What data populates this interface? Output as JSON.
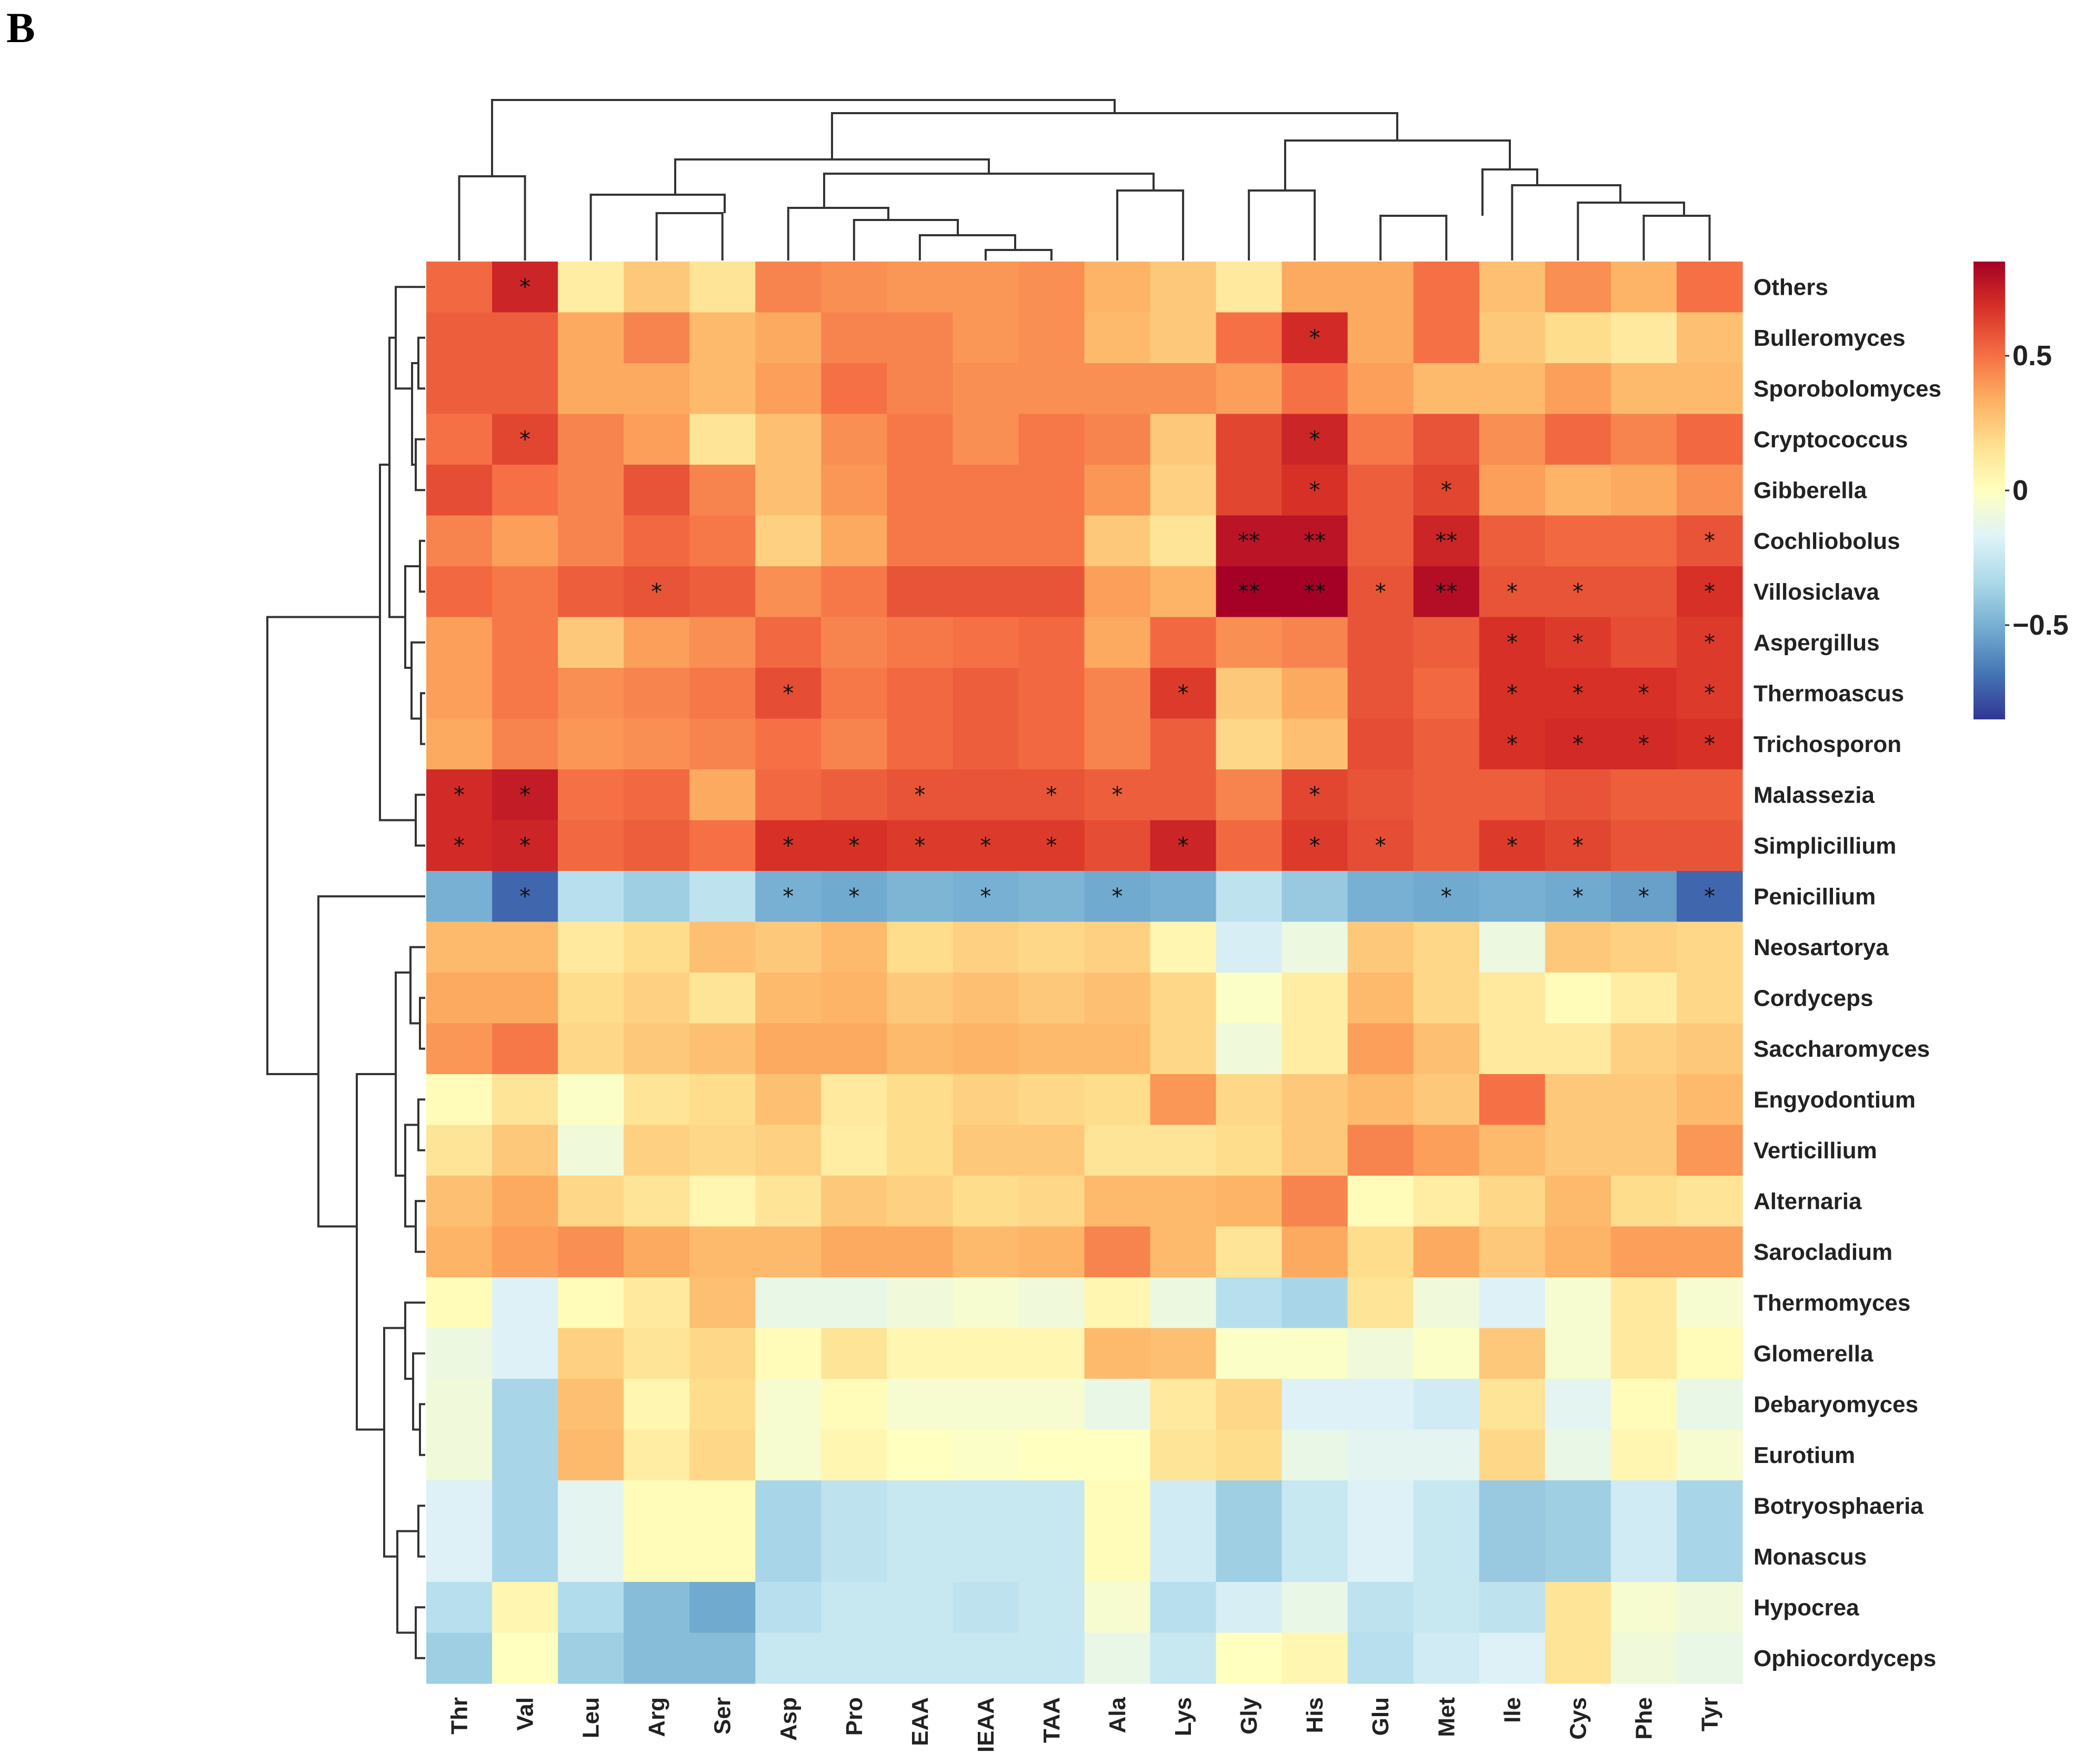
{
  "panel_label": "B",
  "chart_data": {
    "type": "heatmap",
    "title": "",
    "columns": [
      "Thr",
      "Val",
      "Leu",
      "Arg",
      "Ser",
      "Asp",
      "Pro",
      "EAA",
      "IEAA",
      "TAA",
      "Ala",
      "Lys",
      "Gly",
      "His",
      "Glu",
      "Met",
      "Ile",
      "Cys",
      "Phe",
      "Tyr"
    ],
    "rows": [
      "Others",
      "Bulleromyces",
      "Sporobolomyces",
      "Cryptococcus",
      "Gibberella",
      "Cochliobolus",
      "Villosiclava",
      "Aspergillus",
      "Thermoascus",
      "Trichosporon",
      "Malassezia",
      "Simplicillium",
      "Penicillium",
      "Neosartorya",
      "Cordyceps",
      "Saccharomyces",
      "Engyodontium",
      "Verticillium",
      "Alternaria",
      "Sarocladium",
      "Thermomyces",
      "Glomerella",
      "Debaryomyces",
      "Eurotium",
      "Botryosphaeria",
      "Monascus",
      "Hypocrea",
      "Ophiocordyceps"
    ],
    "values": [
      [
        0.52,
        0.72,
        0.1,
        0.25,
        0.15,
        0.45,
        0.42,
        0.4,
        0.4,
        0.42,
        0.32,
        0.25,
        0.12,
        0.35,
        0.35,
        0.5,
        0.28,
        0.42,
        0.32,
        0.5
      ],
      [
        0.55,
        0.55,
        0.35,
        0.45,
        0.3,
        0.35,
        0.45,
        0.45,
        0.4,
        0.42,
        0.3,
        0.25,
        0.5,
        0.7,
        0.35,
        0.5,
        0.25,
        0.18,
        0.12,
        0.28
      ],
      [
        0.55,
        0.55,
        0.35,
        0.35,
        0.3,
        0.38,
        0.5,
        0.45,
        0.42,
        0.42,
        0.42,
        0.42,
        0.38,
        0.5,
        0.38,
        0.3,
        0.3,
        0.38,
        0.3,
        0.3
      ],
      [
        0.5,
        0.62,
        0.45,
        0.38,
        0.15,
        0.28,
        0.42,
        0.48,
        0.42,
        0.48,
        0.45,
        0.25,
        0.62,
        0.72,
        0.48,
        0.58,
        0.42,
        0.52,
        0.45,
        0.52
      ],
      [
        0.6,
        0.5,
        0.45,
        0.58,
        0.45,
        0.28,
        0.4,
        0.48,
        0.48,
        0.48,
        0.4,
        0.22,
        0.62,
        0.68,
        0.55,
        0.62,
        0.38,
        0.32,
        0.35,
        0.42
      ],
      [
        0.45,
        0.38,
        0.45,
        0.52,
        0.48,
        0.22,
        0.35,
        0.48,
        0.48,
        0.48,
        0.25,
        0.15,
        0.78,
        0.78,
        0.55,
        0.72,
        0.55,
        0.52,
        0.52,
        0.58
      ],
      [
        0.52,
        0.48,
        0.55,
        0.58,
        0.55,
        0.42,
        0.48,
        0.58,
        0.58,
        0.58,
        0.38,
        0.32,
        0.86,
        0.9,
        0.58,
        0.8,
        0.58,
        0.58,
        0.58,
        0.68
      ],
      [
        0.38,
        0.48,
        0.25,
        0.38,
        0.42,
        0.52,
        0.45,
        0.48,
        0.5,
        0.52,
        0.35,
        0.52,
        0.42,
        0.45,
        0.58,
        0.55,
        0.68,
        0.65,
        0.6,
        0.65
      ],
      [
        0.38,
        0.48,
        0.42,
        0.45,
        0.48,
        0.6,
        0.48,
        0.52,
        0.55,
        0.52,
        0.45,
        0.65,
        0.25,
        0.35,
        0.58,
        0.52,
        0.68,
        0.68,
        0.68,
        0.65
      ],
      [
        0.35,
        0.45,
        0.4,
        0.42,
        0.45,
        0.5,
        0.45,
        0.52,
        0.55,
        0.52,
        0.45,
        0.55,
        0.2,
        0.28,
        0.6,
        0.55,
        0.68,
        0.7,
        0.7,
        0.68
      ],
      [
        0.7,
        0.75,
        0.5,
        0.52,
        0.35,
        0.52,
        0.55,
        0.58,
        0.58,
        0.58,
        0.55,
        0.55,
        0.45,
        0.62,
        0.58,
        0.55,
        0.55,
        0.58,
        0.55,
        0.55
      ],
      [
        0.7,
        0.72,
        0.52,
        0.55,
        0.5,
        0.68,
        0.68,
        0.65,
        0.65,
        0.65,
        0.6,
        0.72,
        0.52,
        0.65,
        0.6,
        0.55,
        0.65,
        0.62,
        0.58,
        0.58
      ],
      [
        -0.5,
        -0.72,
        -0.3,
        -0.38,
        -0.28,
        -0.5,
        -0.52,
        -0.48,
        -0.5,
        -0.48,
        -0.52,
        -0.5,
        -0.28,
        -0.4,
        -0.5,
        -0.52,
        -0.5,
        -0.52,
        -0.55,
        -0.72
      ],
      [
        0.3,
        0.3,
        0.12,
        0.18,
        0.28,
        0.25,
        0.3,
        0.18,
        0.22,
        0.2,
        0.22,
        0.05,
        -0.2,
        -0.1,
        0.25,
        0.2,
        -0.1,
        0.25,
        0.22,
        0.2
      ],
      [
        0.35,
        0.35,
        0.18,
        0.22,
        0.15,
        0.3,
        0.32,
        0.25,
        0.28,
        0.25,
        0.28,
        0.2,
        -0.02,
        0.1,
        0.3,
        0.2,
        0.12,
        0.02,
        0.1,
        0.2
      ],
      [
        0.4,
        0.48,
        0.2,
        0.25,
        0.28,
        0.35,
        0.35,
        0.3,
        0.32,
        0.3,
        0.3,
        0.2,
        -0.08,
        0.1,
        0.38,
        0.28,
        0.12,
        0.12,
        0.22,
        0.25
      ],
      [
        0.02,
        0.15,
        -0.02,
        0.15,
        0.18,
        0.28,
        0.12,
        0.18,
        0.22,
        0.2,
        0.18,
        0.4,
        0.2,
        0.25,
        0.3,
        0.25,
        0.5,
        0.25,
        0.25,
        0.3
      ],
      [
        0.15,
        0.25,
        -0.08,
        0.22,
        0.2,
        0.22,
        0.1,
        0.18,
        0.25,
        0.25,
        0.15,
        0.15,
        0.18,
        0.25,
        0.45,
        0.38,
        0.3,
        0.25,
        0.25,
        0.4
      ],
      [
        0.28,
        0.35,
        0.2,
        0.15,
        0.05,
        0.15,
        0.25,
        0.22,
        0.18,
        0.2,
        0.3,
        0.3,
        0.32,
        0.45,
        0.02,
        0.1,
        0.2,
        0.3,
        0.18,
        0.15
      ],
      [
        0.32,
        0.38,
        0.42,
        0.35,
        0.3,
        0.3,
        0.35,
        0.35,
        0.3,
        0.32,
        0.45,
        0.3,
        0.15,
        0.35,
        0.18,
        0.35,
        0.25,
        0.32,
        0.38,
        0.38
      ],
      [
        0.02,
        -0.18,
        0.02,
        0.12,
        0.28,
        -0.12,
        -0.12,
        -0.08,
        -0.05,
        -0.08,
        0.05,
        -0.1,
        -0.3,
        -0.35,
        0.15,
        -0.08,
        -0.18,
        -0.05,
        0.12,
        -0.05
      ],
      [
        -0.1,
        -0.18,
        0.22,
        0.15,
        0.2,
        0.02,
        0.15,
        0.05,
        0.05,
        0.05,
        0.3,
        0.28,
        -0.02,
        -0.02,
        -0.08,
        -0.02,
        0.25,
        -0.05,
        0.12,
        0.02
      ],
      [
        -0.08,
        -0.35,
        0.28,
        0.05,
        0.18,
        -0.05,
        0.02,
        -0.05,
        -0.05,
        -0.05,
        -0.12,
        0.12,
        0.2,
        -0.18,
        -0.18,
        -0.22,
        0.15,
        -0.15,
        0.02,
        -0.12
      ],
      [
        -0.08,
        -0.35,
        0.3,
        0.1,
        0.2,
        -0.05,
        0.05,
        0.0,
        -0.02,
        0.0,
        0.0,
        0.15,
        0.18,
        -0.12,
        -0.15,
        -0.15,
        0.2,
        -0.12,
        0.05,
        -0.05
      ],
      [
        -0.18,
        -0.35,
        -0.15,
        0.02,
        0.02,
        -0.35,
        -0.28,
        -0.25,
        -0.25,
        -0.25,
        0.02,
        -0.22,
        -0.38,
        -0.25,
        -0.18,
        -0.25,
        -0.4,
        -0.38,
        -0.22,
        -0.35
      ],
      [
        -0.18,
        -0.35,
        -0.15,
        0.02,
        0.02,
        -0.35,
        -0.28,
        -0.25,
        -0.25,
        -0.25,
        0.02,
        -0.22,
        -0.38,
        -0.25,
        -0.18,
        -0.25,
        -0.4,
        -0.38,
        -0.22,
        -0.35
      ],
      [
        -0.3,
        0.05,
        -0.32,
        -0.45,
        -0.52,
        -0.3,
        -0.25,
        -0.25,
        -0.28,
        -0.25,
        -0.05,
        -0.3,
        -0.2,
        -0.12,
        -0.28,
        -0.25,
        -0.28,
        0.15,
        -0.05,
        -0.08
      ],
      [
        -0.38,
        0.0,
        -0.38,
        -0.45,
        -0.45,
        -0.25,
        -0.25,
        -0.25,
        -0.25,
        -0.25,
        -0.12,
        -0.25,
        0.0,
        0.05,
        -0.3,
        -0.22,
        -0.18,
        0.15,
        -0.08,
        -0.12
      ]
    ],
    "significance": [
      [
        "",
        "*",
        "",
        "",
        "",
        "",
        "",
        "",
        "",
        "",
        "",
        "",
        "",
        "",
        "",
        "",
        "",
        "",
        "",
        ""
      ],
      [
        "",
        "",
        "",
        "",
        "",
        "",
        "",
        "",
        "",
        "",
        "",
        "",
        "",
        "*",
        "",
        "",
        "",
        "",
        "",
        ""
      ],
      [
        "",
        "",
        "",
        "",
        "",
        "",
        "",
        "",
        "",
        "",
        "",
        "",
        "",
        "",
        "",
        "",
        "",
        "",
        "",
        ""
      ],
      [
        "",
        "*",
        "",
        "",
        "",
        "",
        "",
        "",
        "",
        "",
        "",
        "",
        "",
        "*",
        "",
        "",
        "",
        "",
        "",
        ""
      ],
      [
        "",
        "",
        "",
        "",
        "",
        "",
        "",
        "",
        "",
        "",
        "",
        "",
        "",
        "*",
        "",
        "*",
        "",
        "",
        "",
        ""
      ],
      [
        "",
        "",
        "",
        "",
        "",
        "",
        "",
        "",
        "",
        "",
        "",
        "",
        "**",
        "**",
        "",
        "**",
        "",
        "",
        "",
        "*"
      ],
      [
        "",
        "",
        "",
        "*",
        "",
        "",
        "",
        "",
        "",
        "",
        "",
        "",
        "**",
        "**",
        "*",
        "**",
        "*",
        "*",
        "",
        "*"
      ],
      [
        "",
        "",
        "",
        "",
        "",
        "",
        "",
        "",
        "",
        "",
        "",
        "",
        "",
        "",
        "",
        "",
        "*",
        "*",
        "",
        "*"
      ],
      [
        "",
        "",
        "",
        "",
        "",
        "*",
        "",
        "",
        "",
        "",
        "",
        "*",
        "",
        "",
        "",
        "",
        "*",
        "*",
        "*",
        "*"
      ],
      [
        "",
        "",
        "",
        "",
        "",
        "",
        "",
        "",
        "",
        "",
        "",
        "",
        "",
        "",
        "",
        "",
        "*",
        "*",
        "*",
        "*"
      ],
      [
        "*",
        "*",
        "",
        "",
        "",
        "",
        "",
        "*",
        "",
        "*",
        "*",
        "",
        "",
        "*",
        "",
        "",
        "",
        "",
        "",
        ""
      ],
      [
        "*",
        "*",
        "",
        "",
        "",
        "*",
        "*",
        "*",
        "*",
        "*",
        "",
        "*",
        "",
        "*",
        "*",
        "",
        "*",
        "*",
        "",
        ""
      ],
      [
        "",
        "*",
        "",
        "",
        "",
        "*",
        "*",
        "",
        "*",
        "",
        "*",
        "",
        "",
        "",
        "",
        "*",
        "",
        "*",
        "*",
        "*"
      ],
      [
        "",
        "",
        "",
        "",
        "",
        "",
        "",
        "",
        "",
        "",
        "",
        "",
        "",
        "",
        "",
        "",
        "",
        "",
        "",
        ""
      ],
      [
        "",
        "",
        "",
        "",
        "",
        "",
        "",
        "",
        "",
        "",
        "",
        "",
        "",
        "",
        "",
        "",
        "",
        "",
        "",
        ""
      ],
      [
        "",
        "",
        "",
        "",
        "",
        "",
        "",
        "",
        "",
        "",
        "",
        "",
        "",
        "",
        "",
        "",
        "",
        "",
        "",
        ""
      ],
      [
        "",
        "",
        "",
        "",
        "",
        "",
        "",
        "",
        "",
        "",
        "",
        "",
        "",
        "",
        "",
        "",
        "",
        "",
        "",
        ""
      ],
      [
        "",
        "",
        "",
        "",
        "",
        "",
        "",
        "",
        "",
        "",
        "",
        "",
        "",
        "",
        "",
        "",
        "",
        "",
        "",
        ""
      ],
      [
        "",
        "",
        "",
        "",
        "",
        "",
        "",
        "",
        "",
        "",
        "",
        "",
        "",
        "",
        "",
        "",
        "",
        "",
        "",
        ""
      ],
      [
        "",
        "",
        "",
        "",
        "",
        "",
        "",
        "",
        "",
        "",
        "",
        "",
        "",
        "",
        "",
        "",
        "",
        "",
        "",
        ""
      ],
      [
        "",
        "",
        "",
        "",
        "",
        "",
        "",
        "",
        "",
        "",
        "",
        "",
        "",
        "",
        "",
        "",
        "",
        "",
        "",
        ""
      ],
      [
        "",
        "",
        "",
        "",
        "",
        "",
        "",
        "",
        "",
        "",
        "",
        "",
        "",
        "",
        "",
        "",
        "",
        "",
        "",
        ""
      ],
      [
        "",
        "",
        "",
        "",
        "",
        "",
        "",
        "",
        "",
        "",
        "",
        "",
        "",
        "",
        "",
        "",
        "",
        "",
        "",
        ""
      ],
      [
        "",
        "",
        "",
        "",
        "",
        "",
        "",
        "",
        "",
        "",
        "",
        "",
        "",
        "",
        "",
        "",
        "",
        "",
        "",
        ""
      ],
      [
        "",
        "",
        "",
        "",
        "",
        "",
        "",
        "",
        "",
        "",
        "",
        "",
        "",
        "",
        "",
        "",
        "",
        "",
        "",
        ""
      ],
      [
        "",
        "",
        "",
        "",
        "",
        "",
        "",
        "",
        "",
        "",
        "",
        "",
        "",
        "",
        "",
        "",
        "",
        "",
        "",
        ""
      ],
      [
        "",
        "",
        "",
        "",
        "",
        "",
        "",
        "",
        "",
        "",
        "",
        "",
        "",
        "",
        "",
        "",
        "",
        "",
        "",
        ""
      ],
      [
        "",
        "",
        "",
        "",
        "",
        "",
        "",
        "",
        "",
        "",
        "",
        "",
        "",
        "",
        "",
        "",
        "",
        "",
        "",
        ""
      ]
    ],
    "color_scale": {
      "range": [
        -0.85,
        0.85
      ],
      "colors": [
        "#313695",
        "#4575b4",
        "#74add1",
        "#abd9e9",
        "#e0f3f8",
        "#ffffbf",
        "#fee090",
        "#fdae61",
        "#f46d43",
        "#d73027",
        "#a50026"
      ],
      "ticks": [
        0.5,
        0,
        -0.5
      ],
      "tick_labels": [
        "0.5",
        "0",
        "−0.5"
      ]
    },
    "legend_position": "right",
    "col_dendrogram_order": [
      "Thr",
      "Val",
      "Leu",
      "Arg",
      "Ser",
      "Asp",
      "Pro",
      "EAA",
      "IEAA",
      "TAA",
      "Ala",
      "Lys",
      "Gly",
      "His",
      "Glu",
      "Met",
      "Ile",
      "Cys",
      "Phe",
      "Tyr"
    ],
    "row_dendrogram_order": [
      "Others",
      "Bulleromyces",
      "Sporobolomyces",
      "Cryptococcus",
      "Gibberella",
      "Cochliobolus",
      "Villosiclava",
      "Aspergillus",
      "Thermoascus",
      "Trichosporon",
      "Malassezia",
      "Simplicillium",
      "Penicillium",
      "Neosartorya",
      "Cordyceps",
      "Saccharomyces",
      "Engyodontium",
      "Verticillium",
      "Alternaria",
      "Sarocladium",
      "Thermomyces",
      "Glomerella",
      "Debaryomyces",
      "Eurotium",
      "Botryosphaeria",
      "Monascus",
      "Hypocrea",
      "Ophiocordyceps"
    ]
  }
}
